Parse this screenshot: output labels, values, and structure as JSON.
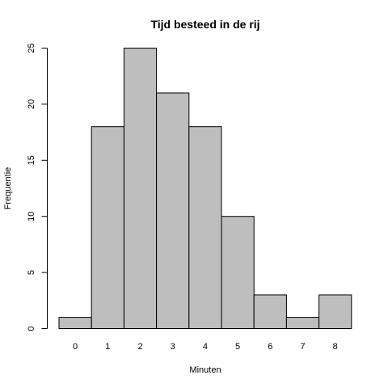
{
  "chart_data": {
    "type": "bar",
    "title": "Tijd besteed in de rij",
    "xlabel": "Minuten",
    "ylabel": "Frequentie",
    "categories": [
      "0",
      "1",
      "2",
      "3",
      "4",
      "5",
      "6",
      "7",
      "8"
    ],
    "values": [
      1,
      18,
      25,
      21,
      18,
      10,
      3,
      1,
      3
    ],
    "ylim": [
      0,
      25
    ],
    "yticks": [
      0,
      5,
      10,
      15,
      20,
      25
    ],
    "grid": false,
    "bar_color": "#bebebe",
    "edge_color": "#000000"
  }
}
